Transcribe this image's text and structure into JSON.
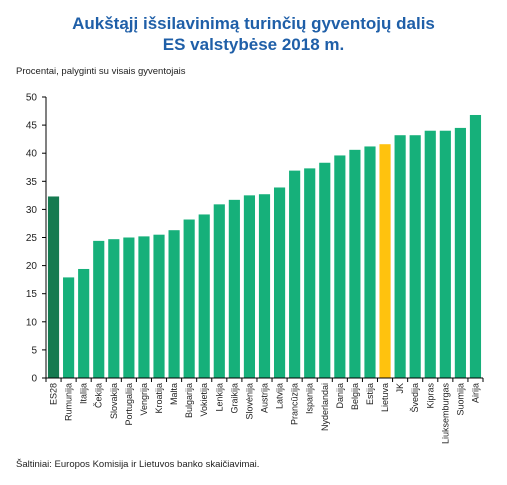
{
  "chart_data": {
    "type": "bar",
    "title_line1": "Aukštąjį išsilavinimą turinčių gyventojų dalis",
    "title_line2": "ES valstybėse 2018 m.",
    "ylabel": "Procentai, palyginti su visais gyventojais",
    "source": "Šaltiniai: Europos Komisija ir Lietuvos banko skaičiavimai.",
    "ylim": [
      0,
      50
    ],
    "yticks": [
      0,
      5,
      10,
      15,
      20,
      25,
      30,
      35,
      40,
      45,
      50
    ],
    "grid": false,
    "categories": [
      "ES28",
      "Rumunija",
      "Italija",
      "Čekija",
      "Slovakija",
      "Portugalija",
      "Vengrija",
      "Kroatija",
      "Malta",
      "Bulgarija",
      "Vokietija",
      "Lenkija",
      "Graikija",
      "Slovėnija",
      "Austrija",
      "Latvija",
      "Prancūzija",
      "Ispanija",
      "Nyderlandai",
      "Danija",
      "Belgija",
      "Estija",
      "Lietuva",
      "JK",
      "Švedija",
      "Kipras",
      "Liuksemburgas",
      "Suomija",
      "Airija"
    ],
    "values": [
      32.3,
      17.9,
      19.4,
      24.4,
      24.7,
      25.0,
      25.2,
      25.5,
      26.3,
      28.2,
      29.1,
      30.9,
      31.7,
      32.5,
      32.7,
      33.9,
      36.9,
      37.3,
      38.3,
      39.6,
      40.6,
      41.2,
      41.6,
      43.2,
      43.2,
      44.0,
      44.0,
      44.5,
      46.8
    ],
    "colors": {
      "eu_average": "#157a50",
      "default": "#16b07a",
      "highlight": "#ffc20e",
      "axis": "#000000"
    },
    "highlight_category": "Lietuva",
    "eu_category": "ES28"
  }
}
